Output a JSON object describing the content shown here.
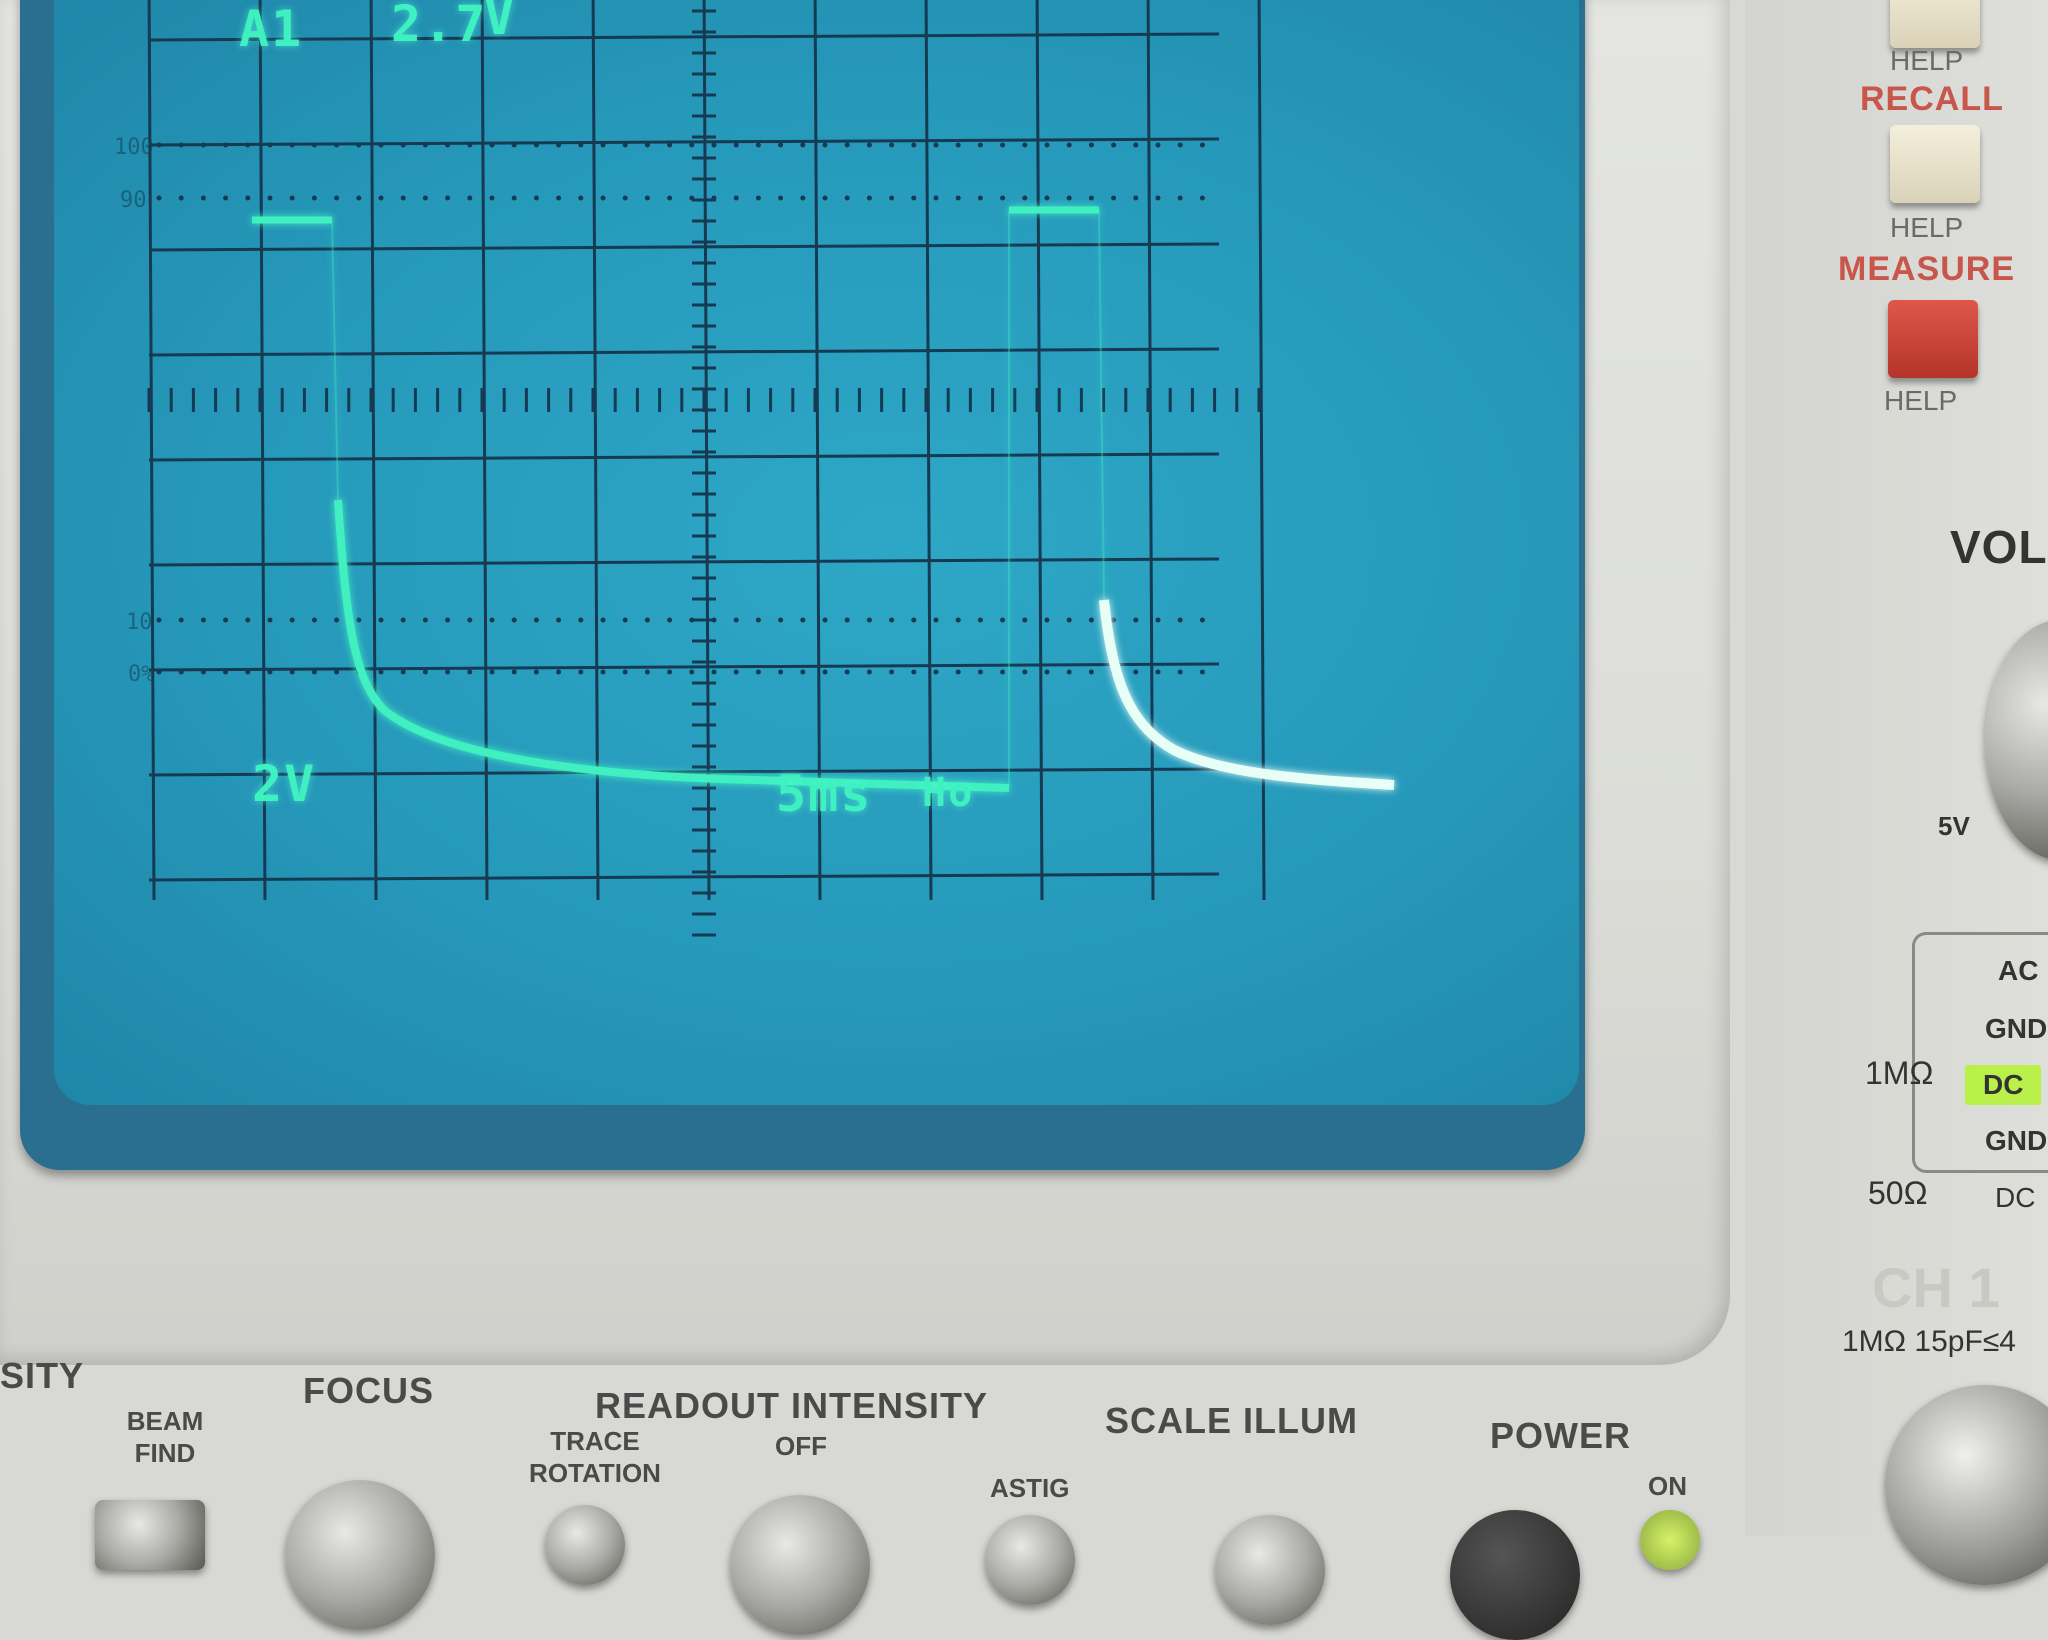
{
  "screen": {
    "readouts": {
      "channel": "A1",
      "trigger_level": "2.7",
      "trigger_unit": "V",
      "volts_per_div": "2V",
      "time_per_div": "5ms",
      "horizontal_indicator": "Ho"
    },
    "graticule_labels": {
      "p100": "100",
      "p90": "90",
      "p10": "10",
      "p0": "0%"
    },
    "colors": {
      "trace": "#3ff0c0",
      "screen": "#2699ba",
      "grid": "#163a52"
    }
  },
  "front_panel": {
    "bottom_labels": {
      "intensity": "SITY",
      "beam_find": "BEAM FIND",
      "focus": "FOCUS",
      "readout_intensity": "READOUT INTENSITY",
      "trace_rotation": "TRACE ROTATION",
      "off": "OFF",
      "astig": "ASTIG",
      "scale_illum": "SCALE ILLUM",
      "power": "POWER",
      "on": "ON"
    },
    "right_panel": {
      "help_1": "HELP",
      "recall": "RECALL",
      "help_2": "HELP",
      "measure": "MEASURE",
      "help_3": "HELP",
      "volts_heading": "VOL",
      "five_v": "5V",
      "ac": "AC",
      "gnd_1": "GND",
      "one_meg": "1MΩ",
      "dc_1": "DC",
      "gnd_2": "GND",
      "fifty_ohm": "50Ω",
      "dc_2": "DC",
      "ch1": "CH 1",
      "input_spec": "1MΩ 15pF≤4"
    }
  }
}
